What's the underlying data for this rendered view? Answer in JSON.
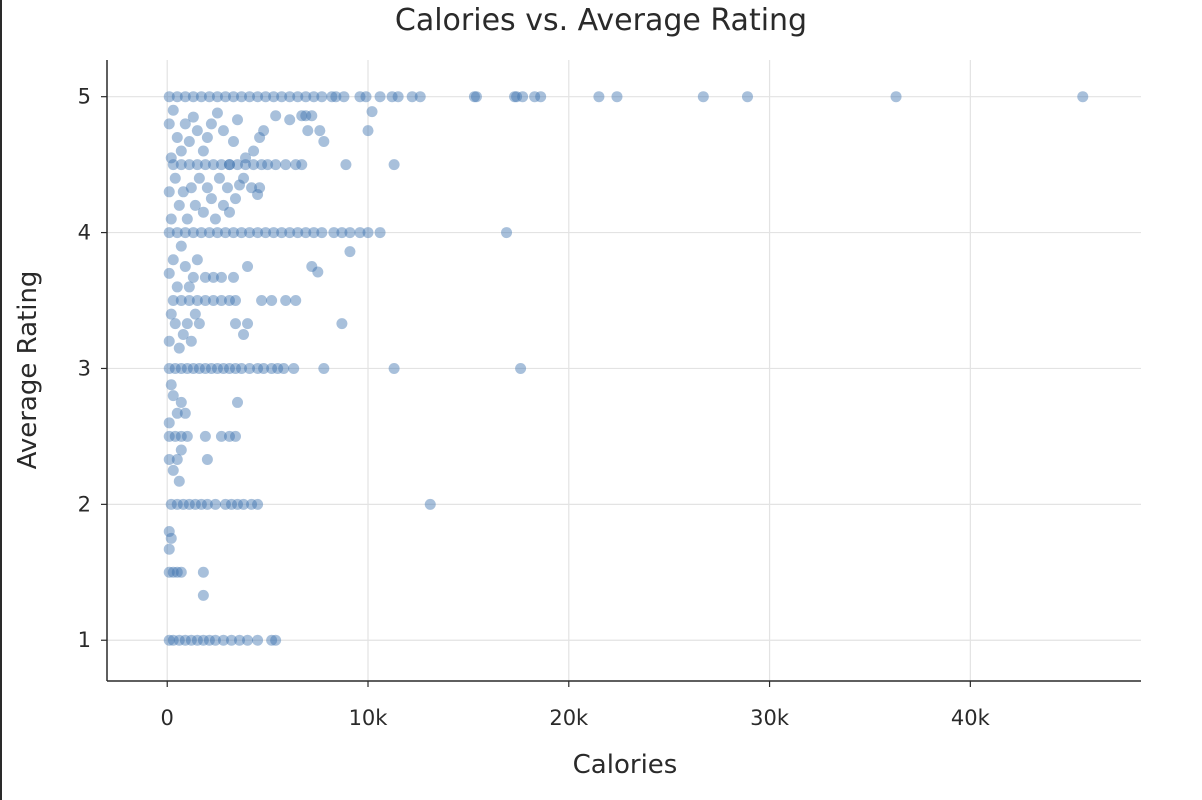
{
  "chart_data": {
    "type": "scatter",
    "title": "Calories vs. Average Rating",
    "xlabel": "Calories",
    "ylabel": "Average Rating",
    "xlim": [
      -3000,
      48500
    ],
    "ylim": [
      0.7,
      5.27
    ],
    "x_ticks": [
      {
        "value": 0,
        "label": "0"
      },
      {
        "value": 10000,
        "label": "10k"
      },
      {
        "value": 20000,
        "label": "20k"
      },
      {
        "value": 30000,
        "label": "30k"
      },
      {
        "value": 40000,
        "label": "40k"
      }
    ],
    "y_ticks": [
      {
        "value": 1,
        "label": "1"
      },
      {
        "value": 2,
        "label": "2"
      },
      {
        "value": 3,
        "label": "3"
      },
      {
        "value": 4,
        "label": "4"
      },
      {
        "value": 5,
        "label": "5"
      }
    ],
    "grid": true,
    "colors": {
      "marker": "#3d74b0",
      "grid": "#e3e3e3",
      "axis": "#2a2a2a"
    },
    "series": [
      {
        "points": [
          [
            10600,
            5
          ],
          [
            11200,
            5
          ],
          [
            11500,
            5
          ],
          [
            12200,
            5
          ],
          [
            12600,
            5
          ],
          [
            15300,
            5
          ],
          [
            15400,
            5
          ],
          [
            17300,
            5
          ],
          [
            17400,
            5
          ],
          [
            17700,
            5
          ],
          [
            18300,
            5
          ],
          [
            18600,
            5
          ],
          [
            21500,
            5
          ],
          [
            22400,
            5
          ],
          [
            26700,
            5
          ],
          [
            28900,
            5
          ],
          [
            36300,
            5
          ],
          [
            45600,
            5
          ],
          [
            9600,
            5
          ],
          [
            9900,
            5
          ],
          [
            8800,
            5
          ],
          [
            8400,
            5
          ],
          [
            8200,
            5
          ],
          [
            7700,
            5
          ],
          [
            7300,
            5
          ],
          [
            6900,
            5
          ],
          [
            6500,
            5
          ],
          [
            6100,
            5
          ],
          [
            5700,
            5
          ],
          [
            5300,
            5
          ],
          [
            4900,
            5
          ],
          [
            4500,
            5
          ],
          [
            4100,
            5
          ],
          [
            3700,
            5
          ],
          [
            3300,
            5
          ],
          [
            2900,
            5
          ],
          [
            2500,
            5
          ],
          [
            2100,
            5
          ],
          [
            1700,
            5
          ],
          [
            1300,
            5
          ],
          [
            900,
            5
          ],
          [
            500,
            5
          ],
          [
            100,
            5
          ],
          [
            16900,
            4
          ],
          [
            10600,
            4
          ],
          [
            10000,
            4
          ],
          [
            9600,
            4
          ],
          [
            9100,
            4
          ],
          [
            8700,
            4
          ],
          [
            8300,
            4
          ],
          [
            7700,
            4
          ],
          [
            7300,
            4
          ],
          [
            6900,
            4
          ],
          [
            6500,
            4
          ],
          [
            6100,
            4
          ],
          [
            5700,
            4
          ],
          [
            5300,
            4
          ],
          [
            4900,
            4
          ],
          [
            4500,
            4
          ],
          [
            4100,
            4
          ],
          [
            3700,
            4
          ],
          [
            3300,
            4
          ],
          [
            2900,
            4
          ],
          [
            2500,
            4
          ],
          [
            2100,
            4
          ],
          [
            1700,
            4
          ],
          [
            1300,
            4
          ],
          [
            900,
            4
          ],
          [
            500,
            4
          ],
          [
            100,
            4
          ],
          [
            17600,
            3
          ],
          [
            11300,
            3
          ],
          [
            7800,
            3
          ],
          [
            6300,
            3
          ],
          [
            5800,
            3
          ],
          [
            5500,
            3
          ],
          [
            5200,
            3
          ],
          [
            4800,
            3
          ],
          [
            4500,
            3
          ],
          [
            4100,
            3
          ],
          [
            3700,
            3
          ],
          [
            3400,
            3
          ],
          [
            3100,
            3
          ],
          [
            2800,
            3
          ],
          [
            2500,
            3
          ],
          [
            2200,
            3
          ],
          [
            1900,
            3
          ],
          [
            1600,
            3
          ],
          [
            1300,
            3
          ],
          [
            1000,
            3
          ],
          [
            700,
            3
          ],
          [
            400,
            3
          ],
          [
            100,
            3
          ],
          [
            13100,
            2
          ],
          [
            4500,
            2
          ],
          [
            4200,
            2
          ],
          [
            3800,
            2
          ],
          [
            3500,
            2
          ],
          [
            3200,
            2
          ],
          [
            2900,
            2
          ],
          [
            2400,
            2
          ],
          [
            2000,
            2
          ],
          [
            1700,
            2
          ],
          [
            1400,
            2
          ],
          [
            1100,
            2
          ],
          [
            800,
            2
          ],
          [
            500,
            2
          ],
          [
            200,
            2
          ],
          [
            5400,
            1
          ],
          [
            5200,
            1
          ],
          [
            4500,
            1
          ],
          [
            4000,
            1
          ],
          [
            3600,
            1
          ],
          [
            3200,
            1
          ],
          [
            2800,
            1
          ],
          [
            2400,
            1
          ],
          [
            2100,
            1
          ],
          [
            1800,
            1
          ],
          [
            1500,
            1
          ],
          [
            1200,
            1
          ],
          [
            900,
            1
          ],
          [
            600,
            1
          ],
          [
            300,
            1
          ],
          [
            100,
            1
          ],
          [
            11300,
            4.5
          ],
          [
            8900,
            4.5
          ],
          [
            6700,
            4.5
          ],
          [
            6400,
            4.5
          ],
          [
            5900,
            4.5
          ],
          [
            5400,
            4.5
          ],
          [
            5000,
            4.5
          ],
          [
            4700,
            4.5
          ],
          [
            4300,
            4.5
          ],
          [
            3900,
            4.5
          ],
          [
            3500,
            4.5
          ],
          [
            3100,
            4.5
          ],
          [
            2700,
            4.5
          ],
          [
            2300,
            4.5
          ],
          [
            1900,
            4.5
          ],
          [
            1500,
            4.5
          ],
          [
            1100,
            4.5
          ],
          [
            700,
            4.5
          ],
          [
            300,
            4.5
          ],
          [
            6400,
            3.5
          ],
          [
            5900,
            3.5
          ],
          [
            5200,
            3.5
          ],
          [
            4700,
            3.5
          ],
          [
            3400,
            3.5
          ],
          [
            3100,
            3.5
          ],
          [
            2700,
            3.5
          ],
          [
            2300,
            3.5
          ],
          [
            1900,
            3.5
          ],
          [
            1500,
            3.5
          ],
          [
            1100,
            3.5
          ],
          [
            700,
            3.5
          ],
          [
            300,
            3.5
          ],
          [
            3400,
            2.5
          ],
          [
            3100,
            2.5
          ],
          [
            2700,
            2.5
          ],
          [
            1900,
            2.5
          ],
          [
            1000,
            2.5
          ],
          [
            700,
            2.5
          ],
          [
            400,
            2.5
          ],
          [
            100,
            2.5
          ],
          [
            1800,
            1.5
          ],
          [
            700,
            1.5
          ],
          [
            500,
            1.5
          ],
          [
            300,
            1.5
          ],
          [
            100,
            1.5
          ],
          [
            10200,
            4.89
          ],
          [
            10000,
            4.75
          ],
          [
            7800,
            4.67
          ],
          [
            7600,
            4.75
          ],
          [
            7200,
            4.86
          ],
          [
            6900,
            4.86
          ],
          [
            7000,
            4.75
          ],
          [
            6700,
            4.86
          ],
          [
            6100,
            4.83
          ],
          [
            5400,
            4.86
          ],
          [
            4800,
            4.75
          ],
          [
            4600,
            4.7
          ],
          [
            4300,
            4.6
          ],
          [
            3900,
            4.55
          ],
          [
            3500,
            4.83
          ],
          [
            3300,
            4.67
          ],
          [
            3100,
            4.5
          ],
          [
            2800,
            4.75
          ],
          [
            2500,
            4.88
          ],
          [
            2200,
            4.8
          ],
          [
            2000,
            4.7
          ],
          [
            1800,
            4.6
          ],
          [
            1500,
            4.75
          ],
          [
            1300,
            4.85
          ],
          [
            1100,
            4.67
          ],
          [
            900,
            4.8
          ],
          [
            700,
            4.6
          ],
          [
            500,
            4.7
          ],
          [
            300,
            4.9
          ],
          [
            200,
            4.55
          ],
          [
            100,
            4.8
          ],
          [
            4600,
            4.33
          ],
          [
            4500,
            4.28
          ],
          [
            4200,
            4.33
          ],
          [
            3800,
            4.4
          ],
          [
            3600,
            4.35
          ],
          [
            3400,
            4.25
          ],
          [
            3100,
            4.15
          ],
          [
            3000,
            4.33
          ],
          [
            2800,
            4.2
          ],
          [
            2600,
            4.4
          ],
          [
            2400,
            4.1
          ],
          [
            2200,
            4.25
          ],
          [
            2000,
            4.33
          ],
          [
            1800,
            4.15
          ],
          [
            1600,
            4.4
          ],
          [
            1400,
            4.2
          ],
          [
            1200,
            4.33
          ],
          [
            1000,
            4.1
          ],
          [
            800,
            4.3
          ],
          [
            600,
            4.2
          ],
          [
            400,
            4.4
          ],
          [
            200,
            4.1
          ],
          [
            100,
            4.3
          ],
          [
            9100,
            3.86
          ],
          [
            7500,
            3.71
          ],
          [
            7200,
            3.75
          ],
          [
            4000,
            3.75
          ],
          [
            3300,
            3.67
          ],
          [
            2700,
            3.67
          ],
          [
            2300,
            3.67
          ],
          [
            1900,
            3.67
          ],
          [
            1500,
            3.8
          ],
          [
            1300,
            3.67
          ],
          [
            1100,
            3.6
          ],
          [
            900,
            3.75
          ],
          [
            700,
            3.9
          ],
          [
            500,
            3.6
          ],
          [
            300,
            3.8
          ],
          [
            100,
            3.7
          ],
          [
            8700,
            3.33
          ],
          [
            4000,
            3.33
          ],
          [
            3800,
            3.25
          ],
          [
            3400,
            3.33
          ],
          [
            1600,
            3.33
          ],
          [
            1400,
            3.4
          ],
          [
            1200,
            3.2
          ],
          [
            1000,
            3.33
          ],
          [
            800,
            3.25
          ],
          [
            600,
            3.15
          ],
          [
            400,
            3.33
          ],
          [
            200,
            3.4
          ],
          [
            100,
            3.2
          ],
          [
            3500,
            2.75
          ],
          [
            900,
            2.67
          ],
          [
            700,
            2.75
          ],
          [
            500,
            2.67
          ],
          [
            300,
            2.8
          ],
          [
            100,
            2.6
          ],
          [
            200,
            2.88
          ],
          [
            2000,
            2.33
          ],
          [
            700,
            2.4
          ],
          [
            500,
            2.33
          ],
          [
            300,
            2.25
          ],
          [
            100,
            2.33
          ],
          [
            600,
            2.17
          ],
          [
            100,
            1.8
          ],
          [
            200,
            1.75
          ],
          [
            100,
            1.67
          ],
          [
            1800,
            1.33
          ]
        ]
      }
    ]
  }
}
